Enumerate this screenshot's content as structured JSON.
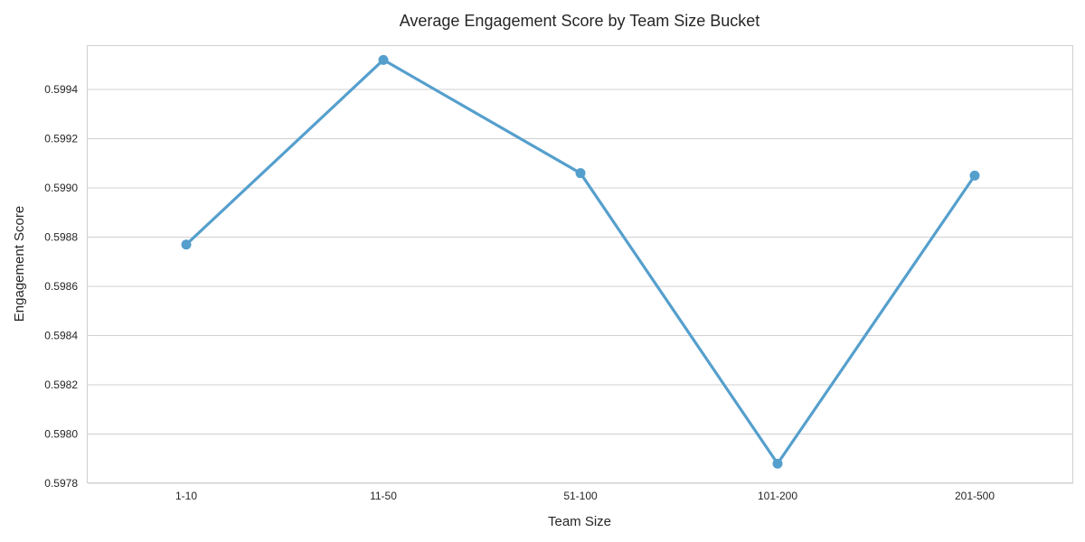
{
  "chart_data": {
    "type": "line",
    "title": "Average Engagement Score by Team Size Bucket",
    "xlabel": "Team Size",
    "ylabel": "Engagement Score",
    "categories": [
      "1-10",
      "11-50",
      "51-100",
      "101-200",
      "201-500"
    ],
    "values": [
      0.59877,
      0.59952,
      0.59906,
      0.59788,
      0.59905
    ],
    "ylim": [
      0.5978,
      0.59958
    ],
    "yticks": [
      0.5978,
      0.598,
      0.5982,
      0.5984,
      0.5986,
      0.5988,
      0.599,
      0.5992,
      0.5994
    ],
    "ytick_labels": [
      "0.5978",
      "0.5980",
      "0.5982",
      "0.5984",
      "0.5986",
      "0.5988",
      "0.5990",
      "0.5992",
      "0.5994"
    ],
    "grid": "horizontal",
    "line_color": "#559fcd"
  }
}
